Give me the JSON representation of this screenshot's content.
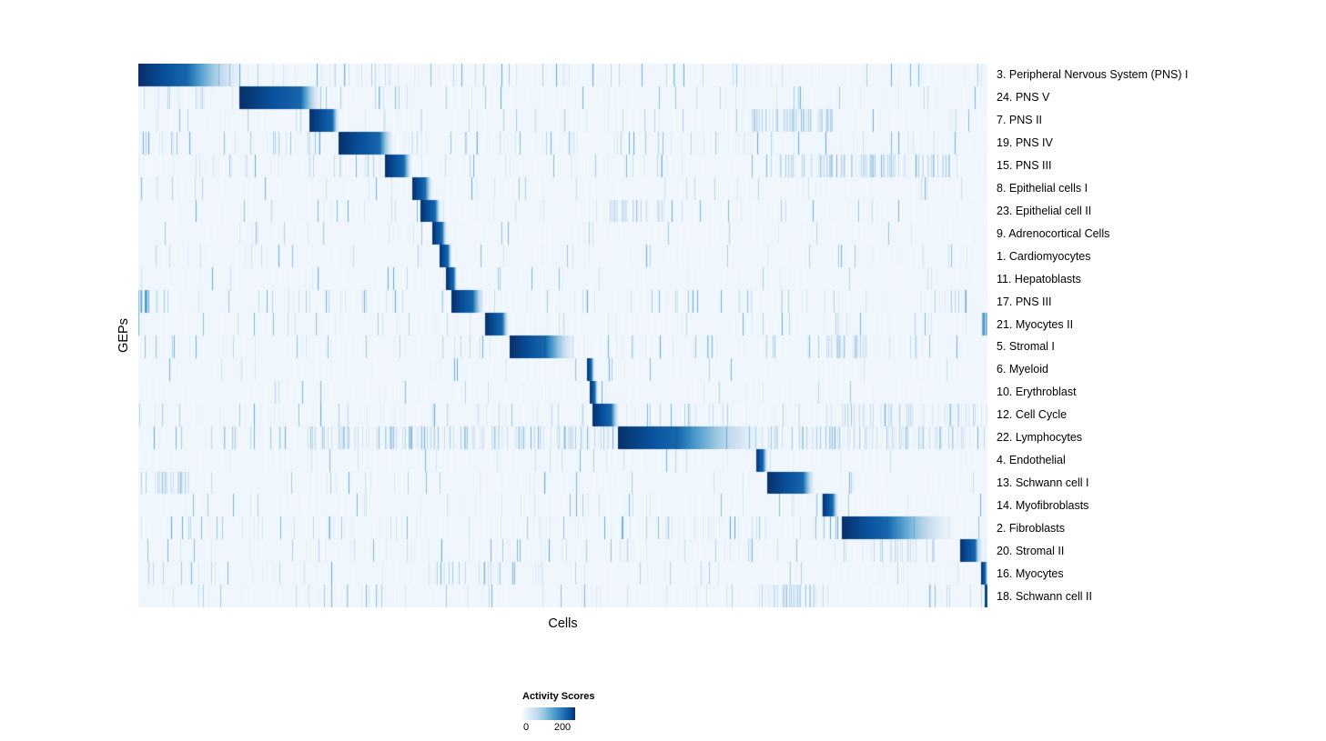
{
  "chart_data": {
    "type": "heatmap",
    "title": "",
    "xlabel": "Cells",
    "ylabel": "GEPs",
    "legend": {
      "title": "Activity Scores",
      "tick_low": "0",
      "tick_high": "200",
      "value_min": 0,
      "value_max": 200
    },
    "colormap": {
      "name": "Blues",
      "low": "#f7fbff",
      "high": "#08306b",
      "stops": [
        [
          0.0,
          "#f7fbff"
        ],
        [
          0.13,
          "#deebf7"
        ],
        [
          0.26,
          "#c6dbef"
        ],
        [
          0.39,
          "#9ecae1"
        ],
        [
          0.52,
          "#6baed6"
        ],
        [
          0.65,
          "#4292c6"
        ],
        [
          0.78,
          "#2171b5"
        ],
        [
          0.9,
          "#08519c"
        ],
        [
          1.0,
          "#08306b"
        ]
      ]
    },
    "rows": [
      {
        "label": "3. Peripheral Nervous System (PNS) I",
        "block": [
          0.0,
          0.055,
          0.125
        ],
        "noise": 0.1
      },
      {
        "label": "24. PNS V",
        "block": [
          0.118,
          0.19,
          0.215
        ],
        "noise": 0.08
      },
      {
        "label": "7. PNS II",
        "block": [
          0.201,
          0.228,
          0.236
        ],
        "noise": 0.06,
        "regions": [
          [
            0.72,
            0.82,
            0.5,
            0.3
          ]
        ]
      },
      {
        "label": "19. PNS IV",
        "block": [
          0.235,
          0.283,
          0.3
        ],
        "noise": 0.12
      },
      {
        "label": "15. PNS III",
        "block": [
          0.29,
          0.312,
          0.322
        ],
        "noise": 0.11,
        "regions": [
          [
            0.74,
            0.96,
            0.25,
            0.3
          ]
        ]
      },
      {
        "label": "8. Epithelial cells I",
        "block": [
          0.322,
          0.337,
          0.346
        ],
        "noise": 0.035
      },
      {
        "label": "23. Epithelial cell II",
        "block": [
          0.332,
          0.349,
          0.356
        ],
        "noise": 0.04,
        "regions": [
          [
            0.55,
            0.62,
            0.3,
            0.25
          ]
        ]
      },
      {
        "label": "9. Adrenocortical Cells",
        "block": [
          0.346,
          0.357,
          0.363
        ],
        "noise": 0.03
      },
      {
        "label": "1. Cardiomyocytes",
        "block": [
          0.354,
          0.364,
          0.369
        ],
        "noise": 0.04
      },
      {
        "label": "11. Hepatoblasts",
        "block": [
          0.362,
          0.371,
          0.375
        ],
        "noise": 0.03
      },
      {
        "label": "17. PNS III",
        "block": [
          0.368,
          0.393,
          0.407
        ],
        "noise": 0.09,
        "regions": [
          [
            0.0,
            0.012,
            0.8,
            0.6
          ]
        ]
      },
      {
        "label": "21. Myocytes II",
        "block": [
          0.408,
          0.428,
          0.436
        ],
        "noise": 0.05,
        "regions": [
          [
            0.992,
            1.0,
            0.8,
            0.7
          ]
        ]
      },
      {
        "label": "5. Stromal I",
        "block": [
          0.437,
          0.478,
          0.515
        ],
        "noise": 0.07,
        "regions": [
          [
            0.81,
            0.87,
            0.35,
            0.3
          ]
        ]
      },
      {
        "label": "6. Myeloid",
        "block": [
          0.528,
          0.533,
          0.537
        ],
        "noise": 0.03
      },
      {
        "label": "10. Erythroblast",
        "block": [
          0.531,
          0.537,
          0.541
        ],
        "noise": 0.03
      },
      {
        "label": "12. Cell Cycle",
        "block": [
          0.534,
          0.556,
          0.566
        ],
        "noise": 0.1,
        "regions": [
          [
            0.82,
            1.0,
            0.22,
            0.3
          ]
        ]
      },
      {
        "label": "22. Lymphocytes",
        "block": [
          0.564,
          0.632,
          0.737
        ],
        "noise": 0.15,
        "regions": [
          [
            0.2,
            0.56,
            0.25,
            0.35
          ],
          [
            0.74,
            1.0,
            0.25,
            0.35
          ]
        ]
      },
      {
        "label": "4. Endothelial",
        "block": [
          0.727,
          0.735,
          0.741
        ],
        "noise": 0.03
      },
      {
        "label": "13. Schwann cell I",
        "block": [
          0.74,
          0.782,
          0.796
        ],
        "noise": 0.06,
        "regions": [
          [
            0.0,
            0.06,
            0.35,
            0.3
          ]
        ]
      },
      {
        "label": "14. Myofibroblasts",
        "block": [
          0.805,
          0.817,
          0.824
        ],
        "noise": 0.04
      },
      {
        "label": "2. Fibroblasts",
        "block": [
          0.828,
          0.88,
          0.96
        ],
        "noise": 0.09
      },
      {
        "label": "20. Stromal II",
        "block": [
          0.967,
          0.985,
          0.991
        ],
        "noise": 0.06,
        "regions": [
          [
            0.86,
            0.94,
            0.3,
            0.25
          ]
        ]
      },
      {
        "label": "16. Myocytes",
        "block": [
          0.992,
          0.997,
          1.0
        ],
        "noise": 0.05,
        "regions": [
          [
            0.33,
            0.43,
            0.2,
            0.3
          ]
        ]
      },
      {
        "label": "18. Schwann cell II",
        "block": [
          0.996,
          1.0,
          1.0
        ],
        "noise": 0.07,
        "regions": [
          [
            0.73,
            0.8,
            0.4,
            0.3
          ]
        ]
      }
    ]
  }
}
